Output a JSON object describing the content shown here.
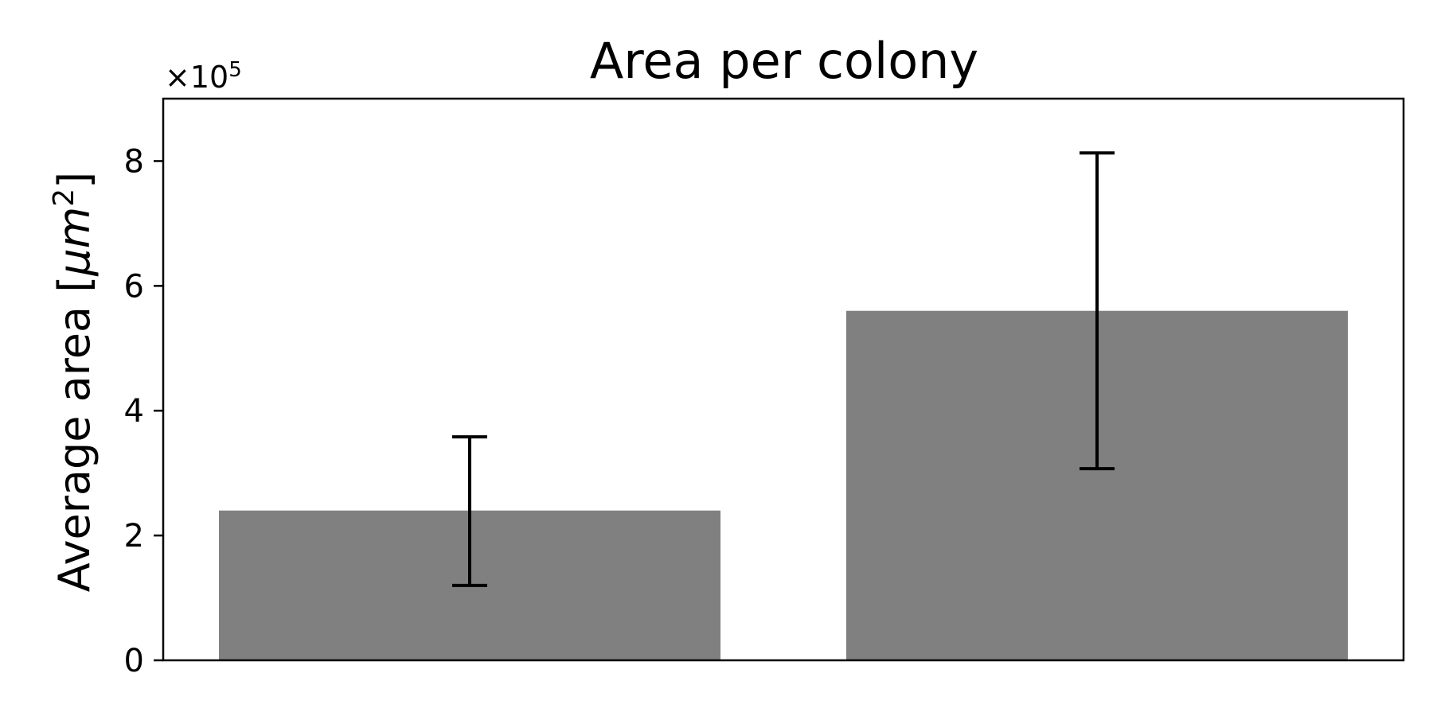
{
  "chart_data": {
    "type": "bar",
    "title": "Area per colony",
    "xlabel": "",
    "ylabel_text": "Average area [",
    "ylabel_unit_base": "μm",
    "ylabel_unit_exp": "2",
    "ylabel_close": "]",
    "multiplier_base": "×10",
    "multiplier_exp": "5",
    "scale_power": 5,
    "categories": [
      "",
      ""
    ],
    "values": [
      240000,
      560000
    ],
    "error_low": [
      120000,
      307000
    ],
    "error_high": [
      358000,
      813000
    ],
    "ylim": [
      0,
      900000
    ],
    "yticks": [
      0,
      200000,
      400000,
      600000,
      800000
    ],
    "ytick_labels": [
      "0",
      "2",
      "4",
      "6",
      "8"
    ],
    "bar_color": "#808080",
    "error_color": "#000000",
    "grid": false,
    "legend": "none"
  }
}
